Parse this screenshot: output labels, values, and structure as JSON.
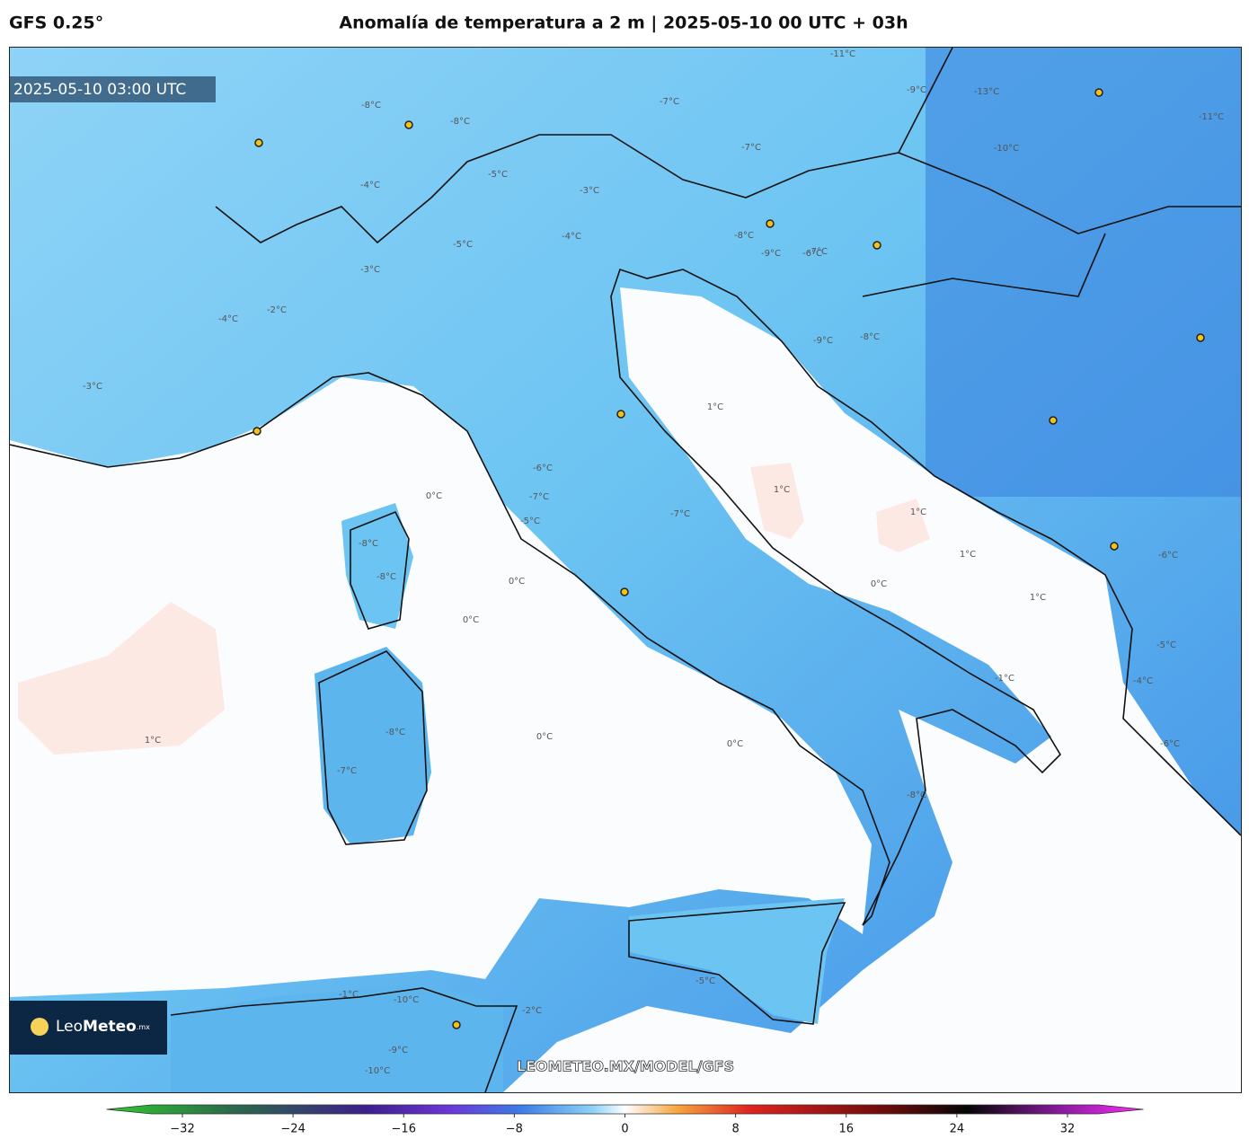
{
  "header": {
    "model": "GFS 0.25°",
    "title": "Anomalía de temperatura a 2 m | 2025-05-10 00 UTC + 03h"
  },
  "map": {
    "valid_time": "2025-05-10 03:00 UTC",
    "watermark": "LEOMETEO.MX/MODEL/GFS",
    "logo": {
      "name_light": "Leo",
      "name_bold": "Meteo",
      "suffix": ".mx"
    },
    "contour_labels": [
      "-11°C",
      "-13°C",
      "-10°C",
      "-11°C",
      "-9°C",
      "-8°C",
      "-7°C",
      "-8°C",
      "-5°C",
      "-4°C",
      "-3°C",
      "-5°C",
      "-4°C",
      "-7°C",
      "-8°C",
      "-7°C",
      "-9°C",
      "-6°C",
      "-9°C",
      "-8°C",
      "-3°C",
      "-2°C",
      "-4°C",
      "-3°C",
      "1°C",
      "1°C",
      "0°C",
      "-6°C",
      "-7°C",
      "-5°C",
      "-7°C",
      "-8°C",
      "-8°C",
      "0°C",
      "0°C",
      "1°C",
      "1°C",
      "1°C",
      "0°C",
      "0°C",
      "-8°C",
      "-7°C",
      "-8°C",
      "-5°C",
      "-1°C",
      "-10°C",
      "-9°C",
      "-10°C",
      "-6°C",
      "0°C",
      "-2°C",
      "-4°C",
      "-6°C",
      "-5°C",
      "-1°C",
      "1°C"
    ]
  },
  "colorbar": {
    "lim": [
      -32,
      32
    ],
    "ticks": [
      {
        "value": -32,
        "label": "−32"
      },
      {
        "value": -24,
        "label": "−24"
      },
      {
        "value": -16,
        "label": "−16"
      },
      {
        "value": -8,
        "label": "−8"
      },
      0,
      8,
      16,
      24,
      32
    ]
  }
}
